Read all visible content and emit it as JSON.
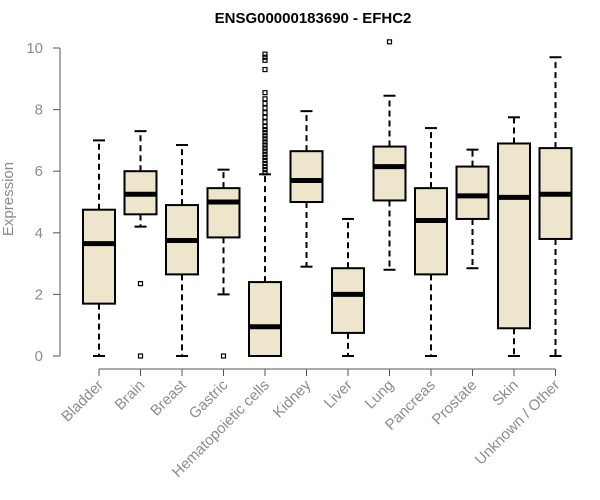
{
  "chart_data": {
    "type": "boxplot",
    "title": "ENSG00000183690 - EFHC2",
    "xlabel": "",
    "ylabel": "Expression",
    "ylim": [
      0,
      10
    ],
    "yticks": [
      0,
      2,
      4,
      6,
      8,
      10
    ],
    "colors": {
      "box_fill": "#ede6cd",
      "box_stroke": "#000000",
      "axis_text": "#8c8c8c"
    },
    "categories": [
      "Bladder",
      "Brain",
      "Breast",
      "Gastric",
      "Hematopoietic cells",
      "Kidney",
      "Liver",
      "Lung",
      "Pancreas",
      "Prostate",
      "Skin",
      "Unknown / Other"
    ],
    "boxes": [
      {
        "label": "Bladder",
        "min": 0,
        "q1": 1.7,
        "median": 3.65,
        "q3": 4.75,
        "max": 7.0,
        "outliers": []
      },
      {
        "label": "Brain",
        "min": 4.2,
        "q1": 4.6,
        "median": 5.25,
        "q3": 6.0,
        "max": 7.3,
        "outliers": [
          2.35,
          0.0
        ]
      },
      {
        "label": "Breast",
        "min": 0,
        "q1": 2.65,
        "median": 3.75,
        "q3": 4.9,
        "max": 6.85,
        "outliers": []
      },
      {
        "label": "Gastric",
        "min": 2.0,
        "q1": 3.85,
        "median": 5.0,
        "q3": 5.45,
        "max": 6.05,
        "outliers": [
          0.0
        ]
      },
      {
        "label": "Hematopoietic cells",
        "min": 0,
        "q1": 0,
        "median": 0.95,
        "q3": 2.4,
        "max": 5.9,
        "outliers": [
          5.95,
          6.05,
          6.15,
          6.25,
          6.35,
          6.45,
          6.55,
          6.65,
          6.75,
          6.85,
          6.95,
          7.05,
          7.15,
          7.25,
          7.35,
          7.45,
          7.6,
          7.75,
          7.9,
          8.05,
          8.2,
          8.35,
          8.55,
          9.3,
          9.6,
          9.7,
          9.8
        ]
      },
      {
        "label": "Kidney",
        "min": 2.9,
        "q1": 5.0,
        "median": 5.7,
        "q3": 6.65,
        "max": 7.95,
        "outliers": []
      },
      {
        "label": "Liver",
        "min": 0,
        "q1": 0.75,
        "median": 2.0,
        "q3": 2.85,
        "max": 4.45,
        "outliers": []
      },
      {
        "label": "Lung",
        "min": 2.8,
        "q1": 5.05,
        "median": 6.15,
        "q3": 6.8,
        "max": 8.45,
        "outliers": [
          10.2
        ]
      },
      {
        "label": "Pancreas",
        "min": 0,
        "q1": 2.65,
        "median": 4.4,
        "q3": 5.45,
        "max": 7.4,
        "outliers": []
      },
      {
        "label": "Prostate",
        "min": 2.85,
        "q1": 4.45,
        "median": 5.2,
        "q3": 6.15,
        "max": 6.7,
        "outliers": []
      },
      {
        "label": "Skin",
        "min": 0,
        "q1": 0.9,
        "median": 5.15,
        "q3": 6.9,
        "max": 7.75,
        "outliers": []
      },
      {
        "label": "Unknown / Other",
        "min": 0,
        "q1": 3.8,
        "median": 5.25,
        "q3": 6.75,
        "max": 9.7,
        "outliers": []
      }
    ]
  }
}
